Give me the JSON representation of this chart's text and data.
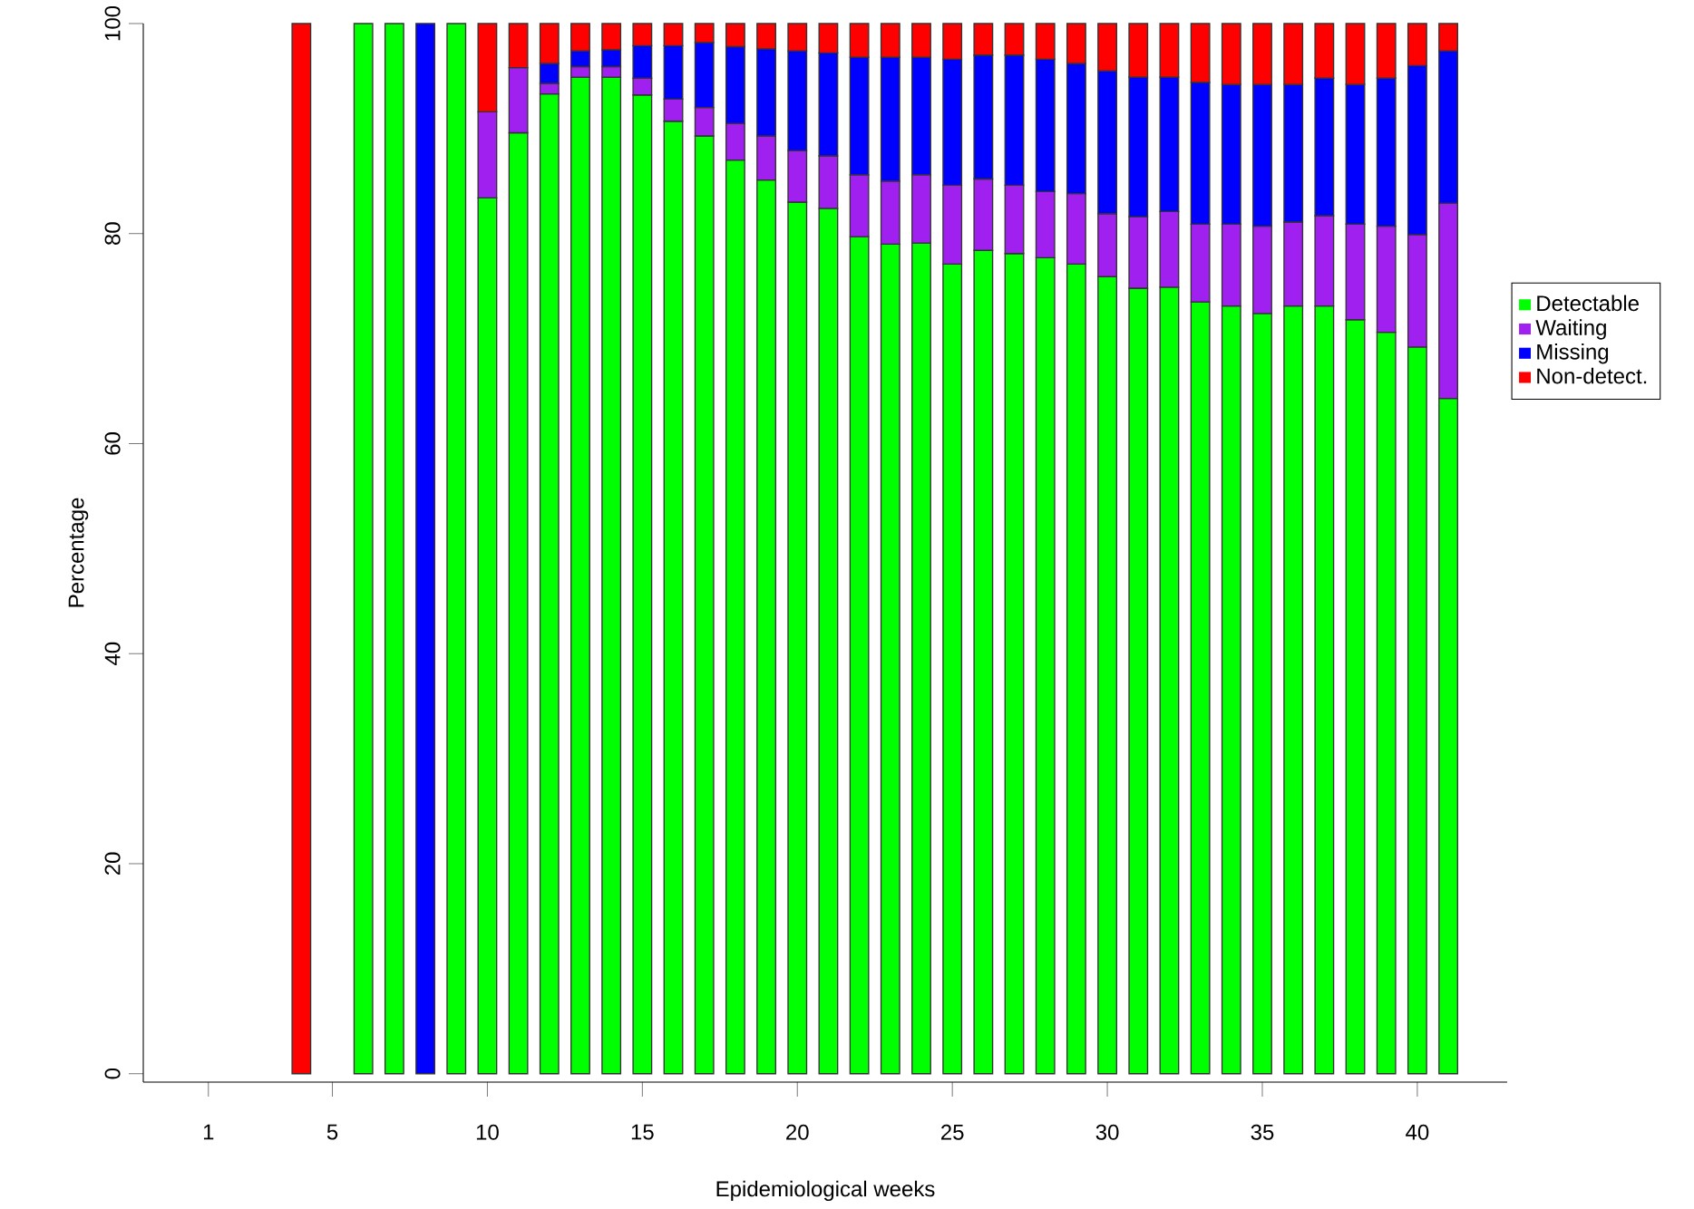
{
  "chart_data": {
    "type": "bar",
    "stacked": true,
    "xlabel": "Epidemiological weeks",
    "ylabel": "Percentage",
    "x": [
      4,
      6,
      7,
      8,
      9,
      10,
      11,
      12,
      13,
      14,
      15,
      16,
      17,
      18,
      19,
      20,
      21,
      22,
      23,
      24,
      25,
      26,
      27,
      28,
      29,
      30,
      31,
      32,
      33,
      34,
      35,
      36,
      37,
      38,
      39,
      40,
      41
    ],
    "series": [
      {
        "name": "Detectable",
        "color": "#00ff00",
        "values": [
          0,
          100,
          100,
          0,
          100,
          83.4,
          89.6,
          93.3,
          94.9,
          94.9,
          93.2,
          90.7,
          89.3,
          87.0,
          85.1,
          83.0,
          82.4,
          79.7,
          79.0,
          79.1,
          77.1,
          78.4,
          78.1,
          77.7,
          77.1,
          75.9,
          74.8,
          74.9,
          73.5,
          73.1,
          72.4,
          73.1,
          73.1,
          71.8,
          70.6,
          69.2,
          64.3
        ]
      },
      {
        "name": "Waiting",
        "color": "#a020f0",
        "values": [
          0,
          0,
          0,
          0,
          0,
          8.2,
          6.2,
          1.0,
          1.0,
          1.0,
          1.6,
          2.1,
          2.7,
          3.5,
          4.2,
          4.9,
          5.0,
          5.9,
          6.0,
          6.5,
          7.5,
          6.8,
          6.5,
          6.3,
          6.7,
          6.0,
          6.8,
          7.2,
          7.4,
          7.8,
          8.3,
          8.0,
          8.6,
          9.1,
          10.1,
          10.7,
          18.6
        ]
      },
      {
        "name": "Missing",
        "color": "#0000ff",
        "values": [
          0,
          0,
          0,
          100,
          0,
          0,
          0,
          1.9,
          1.5,
          1.6,
          3.1,
          5.1,
          6.2,
          7.3,
          8.3,
          9.5,
          9.8,
          11.2,
          11.8,
          11.2,
          12.0,
          11.8,
          12.4,
          12.6,
          12.4,
          13.6,
          13.3,
          12.8,
          13.5,
          13.3,
          13.5,
          13.1,
          13.1,
          13.3,
          14.1,
          16.1,
          14.5
        ]
      },
      {
        "name": "Non-detect.",
        "color": "#ff0000",
        "values": [
          100,
          0,
          0,
          0,
          0,
          8.4,
          4.2,
          3.8,
          2.6,
          2.5,
          2.1,
          2.1,
          1.8,
          2.2,
          2.4,
          2.6,
          2.8,
          3.2,
          3.2,
          3.2,
          3.4,
          3.0,
          3.0,
          3.4,
          3.8,
          4.5,
          5.1,
          5.1,
          5.6,
          5.8,
          5.8,
          5.8,
          5.2,
          5.8,
          5.2,
          4.0,
          2.6
        ]
      }
    ],
    "xlim": [
      -1.1,
      42.9
    ],
    "ylim": [
      -0.8,
      100
    ],
    "xticks": [
      1,
      5,
      10,
      15,
      20,
      25,
      30,
      35,
      40
    ],
    "yticks": [
      0,
      20,
      40,
      60,
      80,
      100
    ],
    "legend": "right",
    "grid": false
  }
}
